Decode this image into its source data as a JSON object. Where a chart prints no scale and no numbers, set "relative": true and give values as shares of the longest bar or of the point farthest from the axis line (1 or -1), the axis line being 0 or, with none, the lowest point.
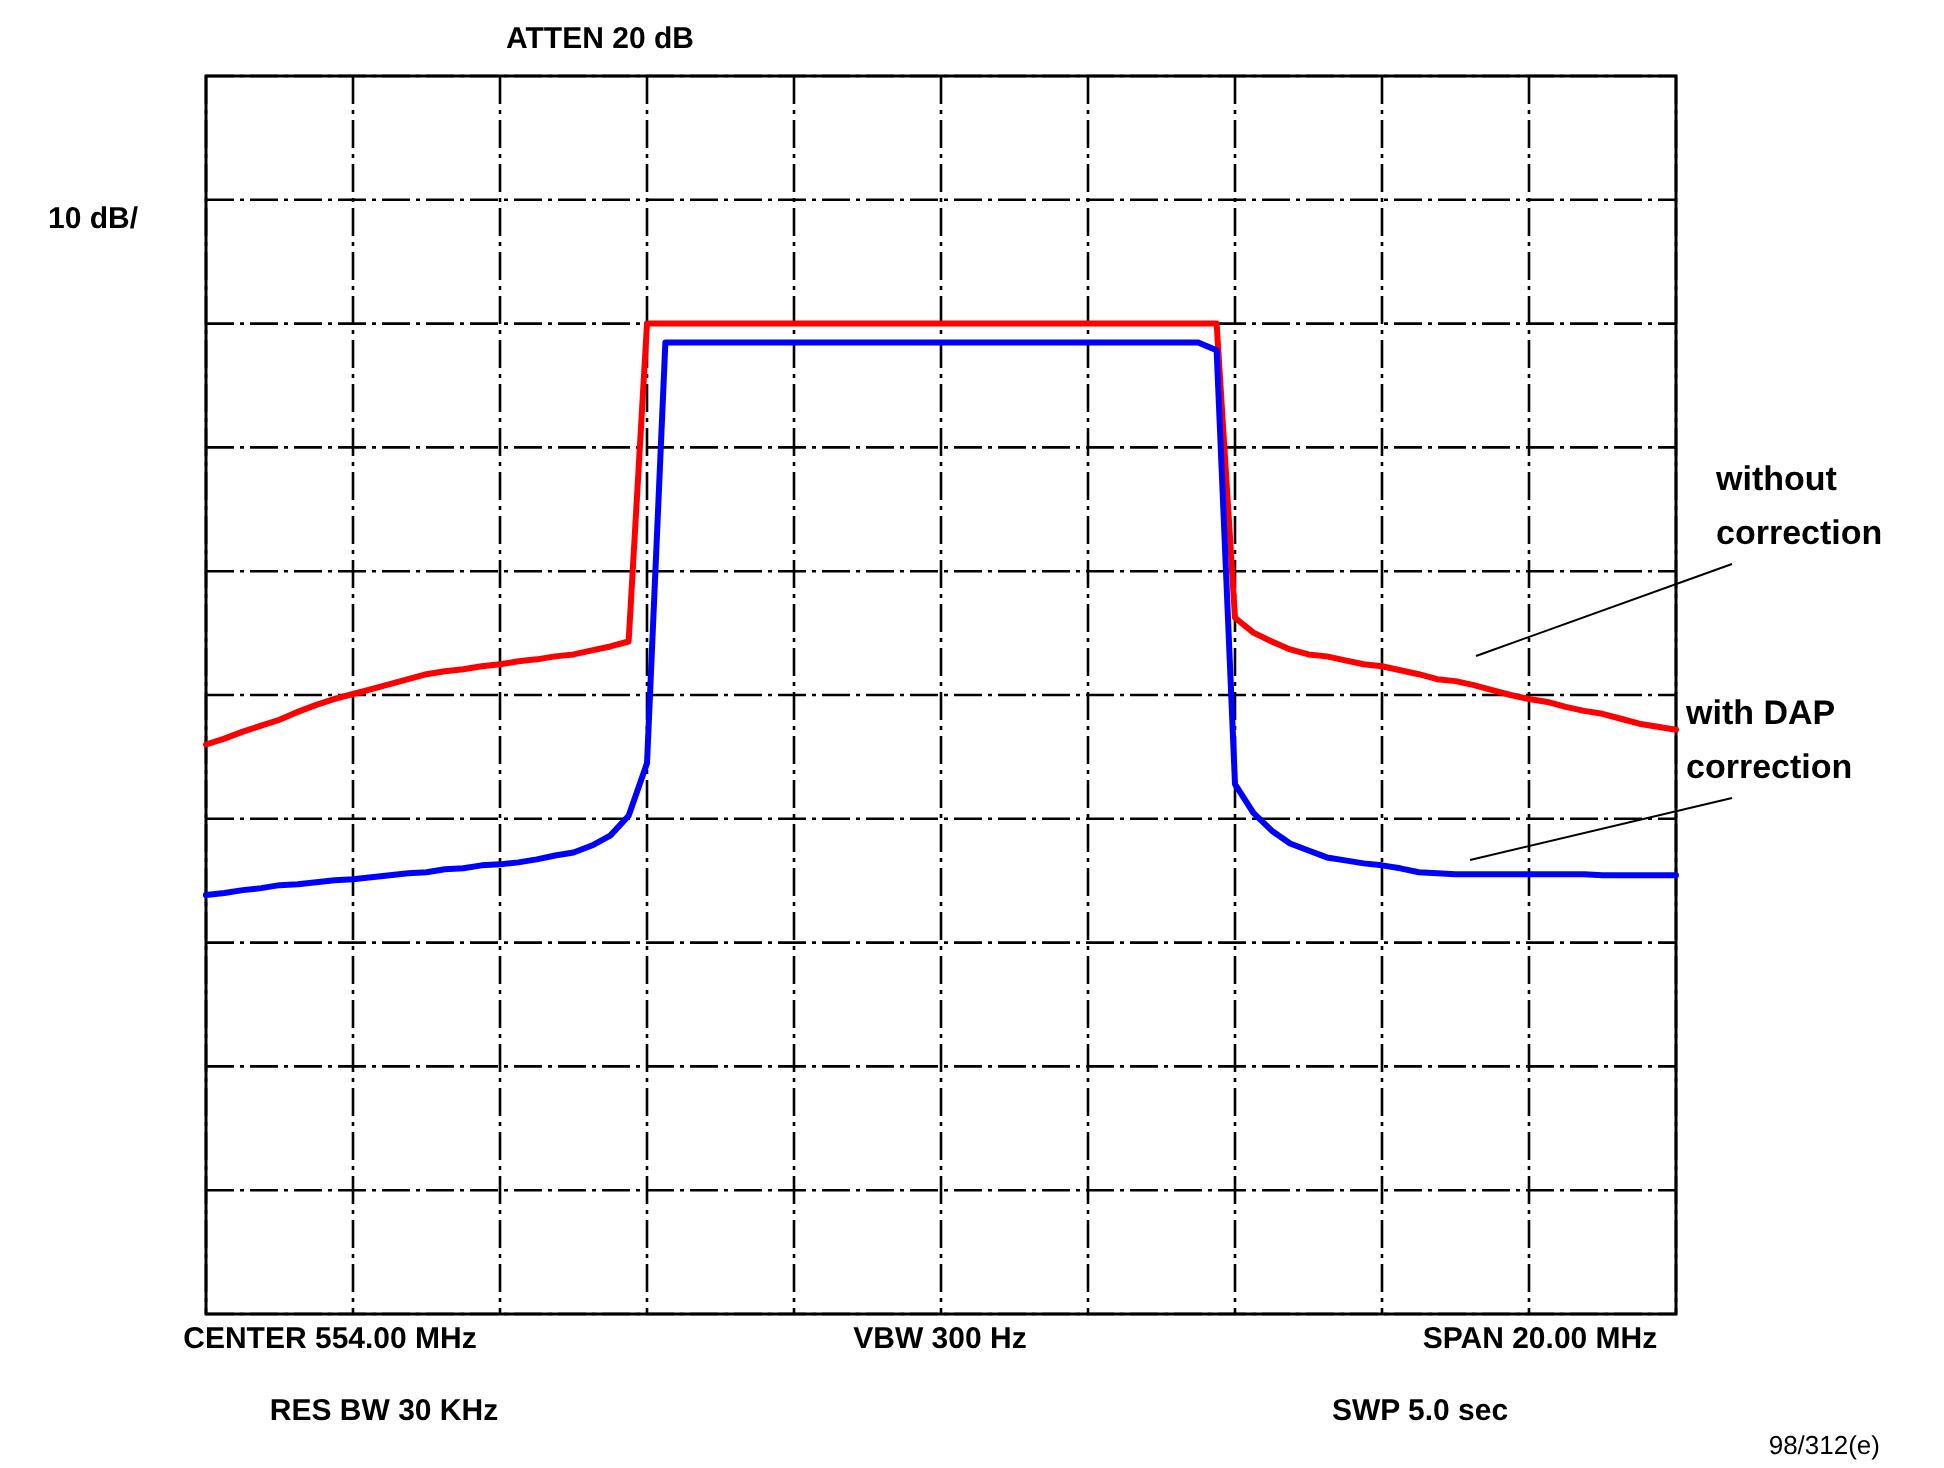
{
  "chart_data": {
    "type": "line",
    "title": "ATTEN 20 dB",
    "ylabel": "10 dB/",
    "relative": true,
    "grid": true,
    "marker": "none",
    "line_style": "solid",
    "categories": [
      null,
      null,
      null,
      null,
      null,
      null,
      null,
      null,
      null,
      null,
      null,
      null,
      null,
      null,
      null,
      null,
      null,
      null,
      null,
      null,
      null,
      null,
      null,
      null,
      null,
      null,
      null,
      null,
      null,
      null,
      null,
      null,
      null,
      null,
      null,
      null,
      null,
      null,
      null,
      null,
      null,
      null,
      null,
      null,
      null,
      null,
      null,
      null,
      null,
      null,
      null,
      null,
      null,
      null,
      null,
      null,
      null,
      null,
      null,
      null,
      null,
      null,
      null,
      null,
      null,
      null,
      null,
      null,
      null,
      null,
      null,
      null,
      null,
      null,
      null,
      null,
      null,
      null,
      null,
      null,
      null
    ],
    "series": [
      {
        "name": "without correction",
        "color": "#ff0000",
        "values": [
          0.575,
          0.581,
          0.588,
          0.594,
          0.6,
          0.608,
          0.615,
          0.621,
          0.626,
          0.631,
          0.636,
          0.641,
          0.646,
          0.649,
          0.651,
          0.654,
          0.656,
          0.659,
          0.661,
          0.664,
          0.666,
          0.67,
          0.674,
          0.679,
          1,
          1,
          1,
          1,
          1,
          1,
          1,
          1,
          1,
          1,
          1,
          1,
          1,
          1,
          1,
          1,
          1,
          1,
          1,
          1,
          1,
          1,
          1,
          1,
          1,
          1,
          1,
          1,
          1,
          1,
          1,
          1,
          0.703,
          0.688,
          0.679,
          0.671,
          0.666,
          0.664,
          0.66,
          0.656,
          0.654,
          0.65,
          0.646,
          0.641,
          0.639,
          0.635,
          0.63,
          0.625,
          0.621,
          0.618,
          0.613,
          0.609,
          0.606,
          0.601,
          0.596,
          0.593,
          0.59
        ]
      },
      {
        "name": "with DAP correction",
        "color": "#0000ff",
        "values": [
          0.423,
          0.425,
          0.428,
          0.43,
          0.433,
          0.434,
          0.436,
          0.438,
          0.439,
          0.441,
          0.443,
          0.445,
          0.446,
          0.449,
          0.45,
          0.453,
          0.454,
          0.456,
          0.459,
          0.463,
          0.466,
          0.473,
          0.483,
          0.503,
          0.556,
          0.981,
          0.981,
          0.981,
          0.981,
          0.981,
          0.981,
          0.981,
          0.981,
          0.981,
          0.981,
          0.981,
          0.981,
          0.981,
          0.981,
          0.981,
          0.981,
          0.981,
          0.981,
          0.981,
          0.981,
          0.981,
          0.981,
          0.981,
          0.981,
          0.981,
          0.981,
          0.981,
          0.981,
          0.981,
          0.981,
          0.973,
          0.535,
          0.506,
          0.488,
          0.475,
          0.468,
          0.461,
          0.458,
          0.455,
          0.453,
          0.45,
          0.446,
          0.445,
          0.444,
          0.444,
          0.444,
          0.444,
          0.444,
          0.444,
          0.444,
          0.444,
          0.443,
          0.443,
          0.443,
          0.443,
          0.443
        ]
      }
    ],
    "annotations": [
      "CENTER 554.00 MHz",
      "VBW 300 Hz",
      "SPAN 20.00 MHz",
      "RES BW 30 KHz",
      "SWP 5.0 sec",
      "98/312(e)"
    ]
  }
}
